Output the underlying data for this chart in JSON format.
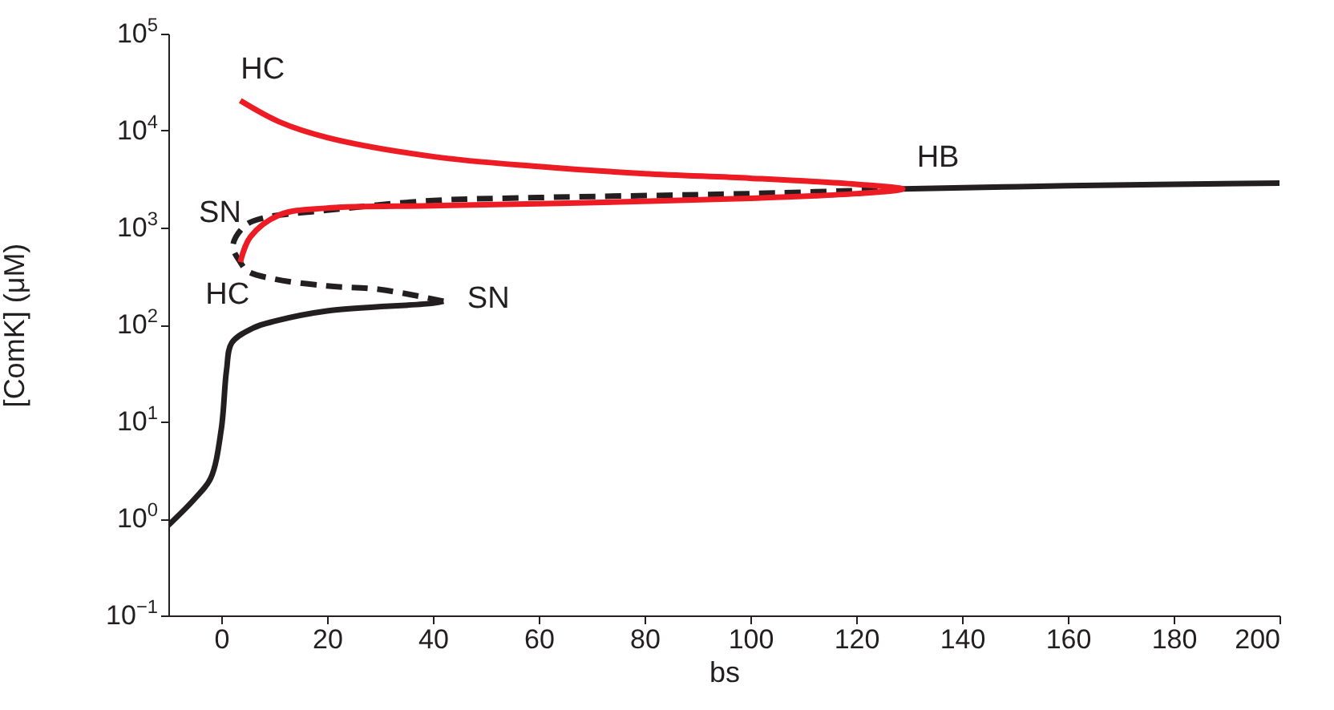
{
  "chart_data": {
    "type": "line",
    "xlabel": "bs",
    "ylabel": "[ComK] (μM)",
    "log": "y",
    "xlim": [
      -10,
      200
    ],
    "ylim": [
      0.1,
      100000
    ],
    "xticks": [
      0,
      20,
      40,
      60,
      80,
      100,
      120,
      140,
      160,
      180,
      200
    ],
    "yticks": [
      {
        "value": 0.1,
        "label": "10$^{−1}$"
      },
      {
        "value": 1,
        "label": "10$^{0}$"
      },
      {
        "value": 10,
        "label": "10$^{1}$"
      },
      {
        "value": 100,
        "label": "10$^{2}$"
      },
      {
        "value": 1000,
        "label": "10$^{3}$"
      },
      {
        "value": 10000,
        "label": "10$^{4}$"
      },
      {
        "value": 100000,
        "label": "10$^{5}$"
      }
    ],
    "grid": false,
    "marker": "none",
    "series": [
      {
        "color": "#231f20",
        "line_style": "solid",
        "x": [
          -10,
          -5,
          -2,
          0,
          1,
          2,
          6,
          10,
          20,
          40,
          42
        ],
        "values": [
          0.85,
          1.6,
          2.6,
          8.3,
          34,
          65,
          92,
          108,
          138,
          166,
          174
        ]
      },
      {
        "color": "#231f20",
        "line_style": "dashed",
        "x": [
          42,
          30,
          20,
          10,
          5,
          3.6,
          2.2,
          4.5,
          8,
          20,
          40,
          60,
          100,
          128.8
        ],
        "values": [
          174,
          230,
          250,
          295,
          355,
          440,
          650,
          1050,
          1260,
          1510,
          1900,
          2040,
          2240,
          2500
        ]
      },
      {
        "color": "#231f20",
        "line_style": "solid",
        "x": [
          128.8,
          160,
          200
        ],
        "values": [
          2500,
          2700,
          2880
        ]
      },
      {
        "color": "#ed1c24",
        "line_style": "solid",
        "x": [
          3.6,
          11,
          20,
          40,
          60,
          80,
          100,
          120,
          128.8,
          120,
          100,
          64,
          40,
          20,
          11,
          5.5,
          3.6
        ],
        "values": [
          20400,
          12300,
          8500,
          5400,
          4260,
          3600,
          3230,
          2800,
          2500,
          2240,
          2000,
          1780,
          1680,
          1590,
          1350,
          800,
          440
        ]
      }
    ],
    "annotations": [
      {
        "text": "HC",
        "x": 3.6,
        "y": 20400
      },
      {
        "text": "SN",
        "x": 2.2,
        "y": 650
      },
      {
        "text": "HC",
        "x": 3.6,
        "y": 440
      },
      {
        "text": "SN",
        "x": 42,
        "y": 174
      },
      {
        "text": "HB",
        "x": 128.8,
        "y": 2500
      }
    ]
  }
}
